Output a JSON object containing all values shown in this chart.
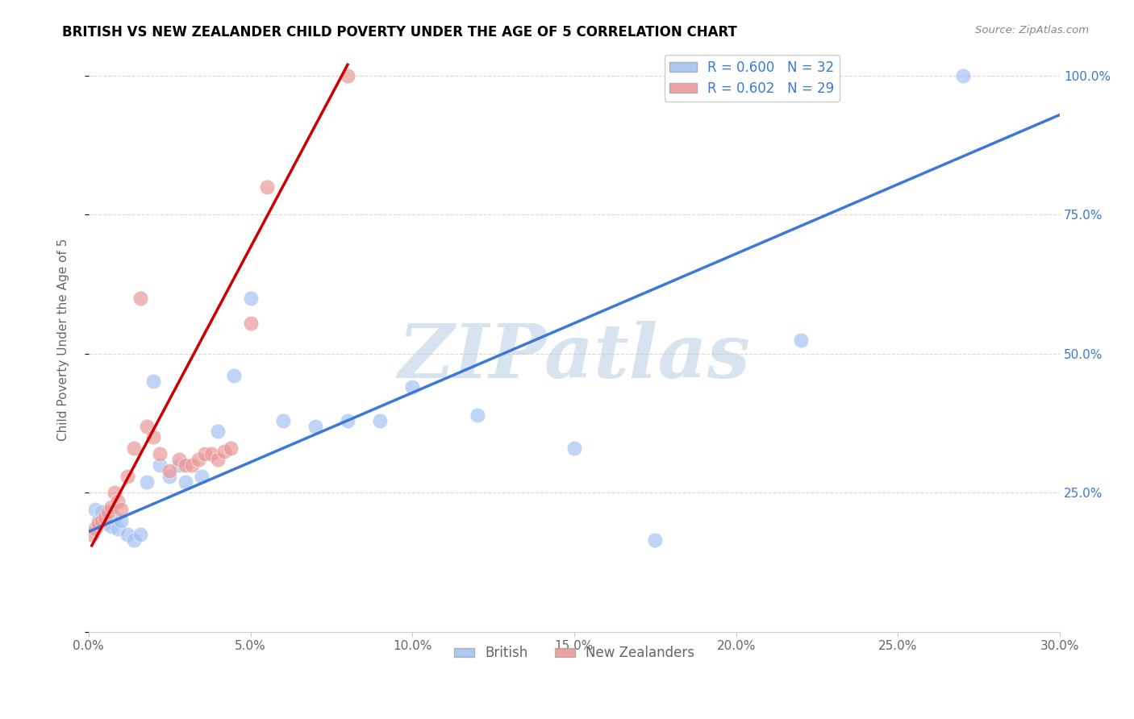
{
  "title": "BRITISH VS NEW ZEALANDER CHILD POVERTY UNDER THE AGE OF 5 CORRELATION CHART",
  "source": "Source: ZipAtlas.com",
  "ylabel": "Child Poverty Under the Age of 5",
  "xlabel_ticks": [
    "0.0%",
    "5.0%",
    "10.0%",
    "15.0%",
    "20.0%",
    "25.0%",
    "30.0%"
  ],
  "ylabel_ticks": [
    "0%",
    "25.0%",
    "50.0%",
    "75.0%",
    "100.0%"
  ],
  "xlim": [
    0.0,
    0.3
  ],
  "ylim": [
    0.0,
    1.05
  ],
  "blue_R": "0.600",
  "blue_N": "32",
  "pink_R": "0.602",
  "pink_N": "29",
  "blue_label": "British",
  "pink_label": "New Zealanders",
  "blue_color": "#a4c2f4",
  "pink_color": "#ea9999",
  "blue_line_color": "#3c78d8",
  "pink_line_color": "#cc0000",
  "watermark": "ZIPatlas",
  "watermark_color": "#b8cce4",
  "grid_color": "#d9d9d9",
  "british_x": [
    0.002,
    0.003,
    0.004,
    0.005,
    0.006,
    0.007,
    0.008,
    0.009,
    0.01,
    0.012,
    0.014,
    0.016,
    0.018,
    0.02,
    0.022,
    0.025,
    0.028,
    0.03,
    0.035,
    0.04,
    0.045,
    0.05,
    0.06,
    0.07,
    0.08,
    0.09,
    0.1,
    0.12,
    0.15,
    0.175,
    0.22,
    0.27
  ],
  "british_y": [
    0.22,
    0.2,
    0.215,
    0.195,
    0.21,
    0.19,
    0.205,
    0.185,
    0.2,
    0.175,
    0.165,
    0.175,
    0.27,
    0.45,
    0.3,
    0.28,
    0.3,
    0.27,
    0.28,
    0.36,
    0.46,
    0.6,
    0.38,
    0.37,
    0.38,
    0.38,
    0.44,
    0.39,
    0.33,
    0.165,
    0.525,
    1.0
  ],
  "nz_x": [
    0.001,
    0.002,
    0.003,
    0.004,
    0.005,
    0.006,
    0.007,
    0.008,
    0.009,
    0.01,
    0.012,
    0.014,
    0.016,
    0.018,
    0.02,
    0.022,
    0.025,
    0.028,
    0.03,
    0.032,
    0.034,
    0.036,
    0.038,
    0.04,
    0.042,
    0.044,
    0.05,
    0.055,
    0.08
  ],
  "nz_y": [
    0.175,
    0.185,
    0.195,
    0.2,
    0.205,
    0.215,
    0.225,
    0.25,
    0.235,
    0.22,
    0.28,
    0.33,
    0.6,
    0.37,
    0.35,
    0.32,
    0.29,
    0.31,
    0.3,
    0.3,
    0.31,
    0.32,
    0.32,
    0.31,
    0.325,
    0.33,
    0.555,
    0.8,
    1.0
  ],
  "blue_line_x0": 0.0,
  "blue_line_y0": 0.18,
  "blue_line_x1": 0.3,
  "blue_line_y1": 0.93,
  "pink_line_x0": 0.001,
  "pink_line_y0": 0.155,
  "pink_line_x1": 0.08,
  "pink_line_y1": 1.02
}
